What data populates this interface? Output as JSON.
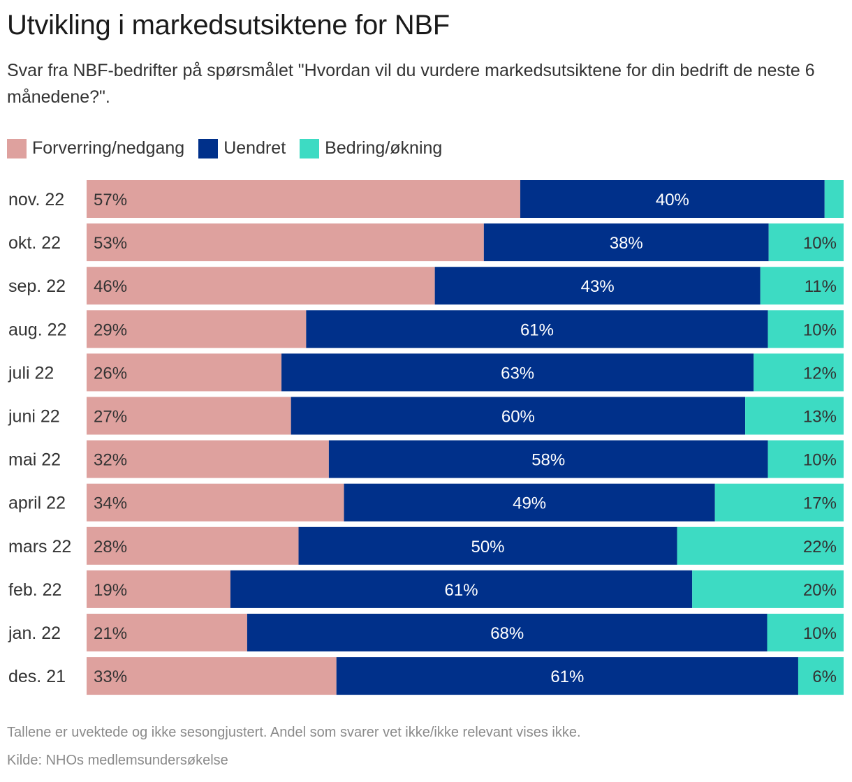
{
  "title": "Utvikling i markedsutsiktene for NBF",
  "subtitle": "Svar fra NBF-bedrifter på spørsmålet \"Hvordan vil du vurdere markedsutsiktene for din bedrift de neste 6 månedene?\".",
  "footnote": "Tallene er uvektede og ikke sesongjustert. Andel som svarer vet ikke/ikke relevant vises ikke.",
  "source": "Kilde: NHOs medlemsundersøkelse",
  "colors": {
    "worse": "#dea19e",
    "unchanged": "#00308a",
    "better": "#3ddbc3"
  },
  "chart_data": {
    "type": "bar",
    "orientation": "horizontal",
    "stacked": true,
    "legend_position": "top-left",
    "grid": false,
    "xlim": [
      0,
      100
    ],
    "categories": [
      "nov. 22",
      "okt. 22",
      "sep. 22",
      "aug. 22",
      "juli 22",
      "juni 22",
      "mai 22",
      "april 22",
      "mars 22",
      "feb. 22",
      "jan. 22",
      "des. 21"
    ],
    "series": [
      {
        "name": "Forverring/nedgang",
        "color": "#dea19e",
        "values": [
          57,
          53,
          46,
          29,
          26,
          27,
          32,
          34,
          28,
          19,
          21,
          33
        ]
      },
      {
        "name": "Uendret",
        "color": "#00308a",
        "values": [
          40,
          38,
          43,
          61,
          63,
          60,
          58,
          49,
          50,
          61,
          68,
          61
        ]
      },
      {
        "name": "Bedring/økning",
        "color": "#3ddbc3",
        "values": [
          2.5,
          10,
          11,
          10,
          12,
          13,
          10,
          17,
          22,
          20,
          10,
          6
        ]
      }
    ],
    "data_labels": [
      [
        "57%",
        "40%",
        ""
      ],
      [
        "53%",
        "38%",
        "10%"
      ],
      [
        "46%",
        "43%",
        "11%"
      ],
      [
        "29%",
        "61%",
        "10%"
      ],
      [
        "26%",
        "63%",
        "12%"
      ],
      [
        "27%",
        "60%",
        "13%"
      ],
      [
        "32%",
        "58%",
        "10%"
      ],
      [
        "34%",
        "49%",
        "17%"
      ],
      [
        "28%",
        "50%",
        "22%"
      ],
      [
        "19%",
        "61%",
        "20%"
      ],
      [
        "21%",
        "68%",
        "10%"
      ],
      [
        "33%",
        "61%",
        "6%"
      ]
    ]
  }
}
